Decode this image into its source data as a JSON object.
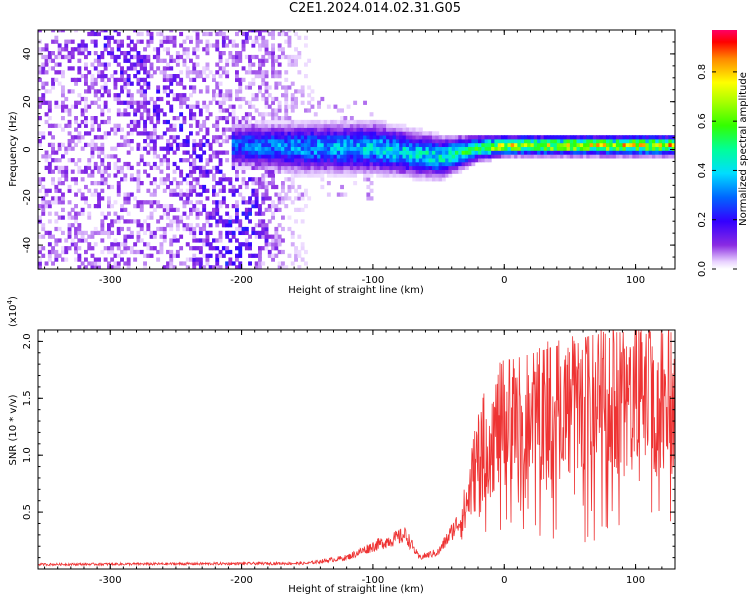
{
  "title": "C2E1.2024.014.02.31.G05",
  "chart_data": [
    {
      "type": "heatmap",
      "xlabel": "Height of straight line (km)",
      "ylabel": "Frequency (Hz)",
      "xlim": [
        -355,
        130
      ],
      "ylim": [
        -50,
        50
      ],
      "xticks": [
        -300,
        -200,
        -100,
        0,
        100
      ],
      "yticks": [
        -40,
        -20,
        0,
        20,
        40
      ],
      "colorbar": {
        "label": "Normalized spectral amplitude",
        "range": [
          0,
          0.97
        ],
        "ticks": [
          0.0,
          0.2,
          0.4,
          0.6,
          0.8
        ],
        "tick_labels": [
          "0.0",
          "0.2",
          "0.4",
          "0.6",
          "0.8"
        ]
      },
      "ridge": {
        "description_points": [
          {
            "x": -205,
            "y": 1,
            "width_hz": 10,
            "amp": 0.35
          },
          {
            "x": -150,
            "y": 0,
            "width_hz": 12,
            "amp": 0.4
          },
          {
            "x": -100,
            "y": 0,
            "width_hz": 12,
            "amp": 0.45
          },
          {
            "x": -50,
            "y": -4,
            "width_hz": 10,
            "amp": 0.5
          },
          {
            "x": -20,
            "y": 0,
            "width_hz": 6,
            "amp": 0.65
          },
          {
            "x": 0,
            "y": 1,
            "width_hz": 5,
            "amp": 0.8
          },
          {
            "x": 130,
            "y": 1,
            "width_hz": 5,
            "amp": 0.85
          }
        ]
      },
      "noise_region": {
        "x_from": -355,
        "x_to": -140,
        "amp": 0.2
      }
    },
    {
      "type": "line",
      "xlabel": "Height of straight line (km)",
      "ylabel": "SNR (10 * v/v)",
      "yscale_label": "(x10",
      "yscale_exp": "4",
      "yscale_close": ")",
      "xlim": [
        -355,
        130
      ],
      "ylim": [
        0,
        2.1
      ],
      "xticks": [
        -300,
        -200,
        -100,
        0,
        100
      ],
      "yticks": [
        0.5,
        1.0,
        1.5,
        2.0
      ],
      "ytick_labels": [
        "0.5",
        "1.0",
        "1.5",
        "2.0"
      ],
      "color": "#ee3333",
      "envelope": [
        {
          "x": -355,
          "y": 0.04
        },
        {
          "x": -150,
          "y": 0.05
        },
        {
          "x": -120,
          "y": 0.1
        },
        {
          "x": -100,
          "y": 0.2
        },
        {
          "x": -75,
          "y": 0.3
        },
        {
          "x": -65,
          "y": 0.1
        },
        {
          "x": -50,
          "y": 0.15
        },
        {
          "x": -30,
          "y": 0.5
        },
        {
          "x": -20,
          "y": 1.0
        },
        {
          "x": 0,
          "y": 1.3
        },
        {
          "x": 40,
          "y": 1.4
        },
        {
          "x": 80,
          "y": 1.5
        },
        {
          "x": 130,
          "y": 1.5
        }
      ]
    }
  ]
}
